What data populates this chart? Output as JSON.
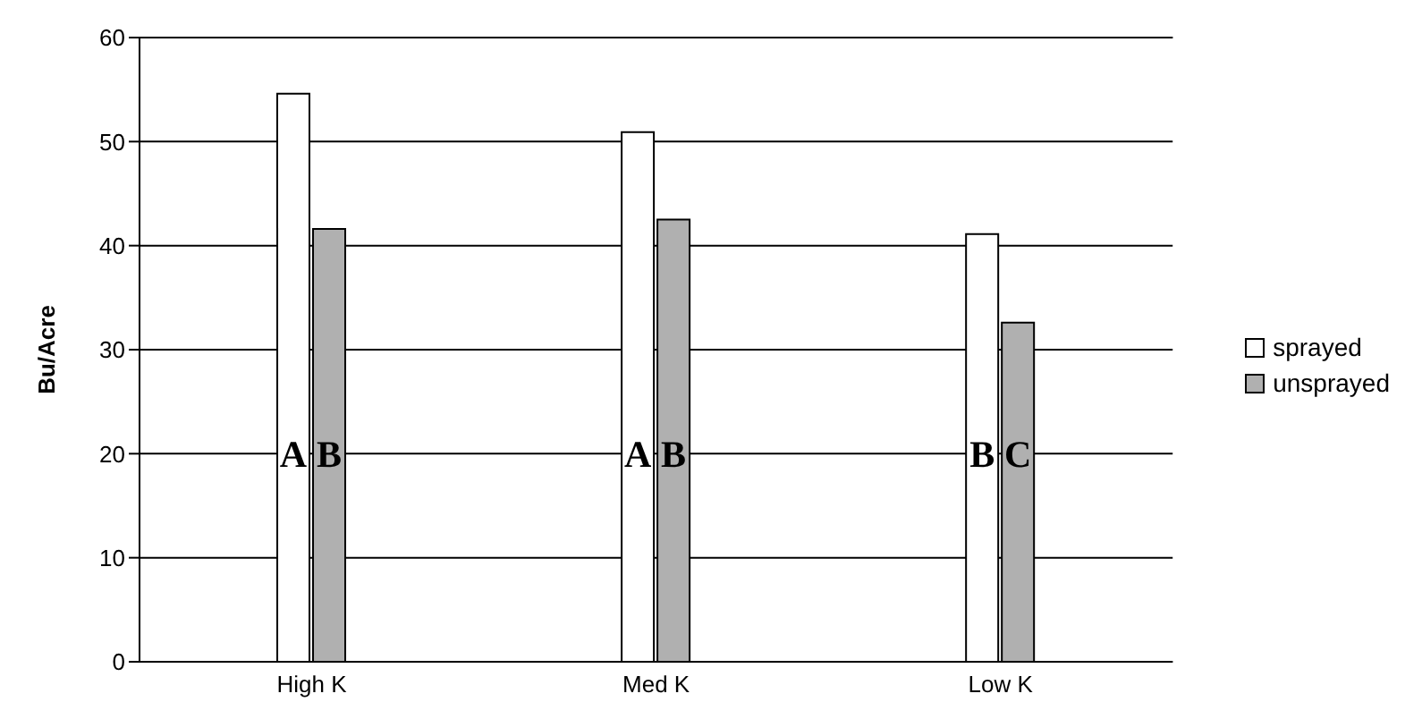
{
  "chart_data": {
    "type": "bar",
    "ylabel": "Bu/Acre",
    "categories": [
      "High K",
      "Med K",
      "Low K"
    ],
    "series": [
      {
        "name": "sprayed",
        "color": "#ffffff",
        "values": [
          54.6,
          50.9,
          41.1
        ],
        "value_labels": [
          "A",
          "A",
          "B"
        ]
      },
      {
        "name": "unsprayed",
        "color": "#b0b0b0",
        "values": [
          41.6,
          42.5,
          32.6
        ],
        "value_labels": [
          "B",
          "B",
          "C"
        ]
      }
    ],
    "ylim": [
      0,
      60
    ],
    "yticks": [
      0,
      10,
      20,
      30,
      40,
      50,
      60
    ],
    "grid": "y",
    "legend": "right"
  }
}
